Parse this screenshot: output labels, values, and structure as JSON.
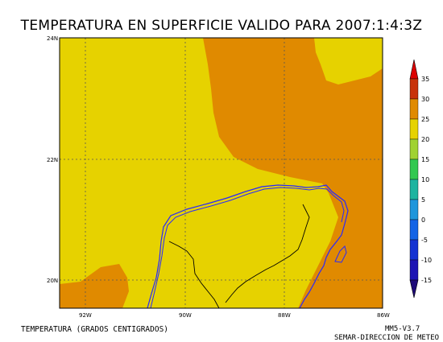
{
  "title": "TEMPERATURA EN SUPERFICIE VALIDO PARA 2007:1:4:3Z",
  "field_label": "TEMPERATURA (GRADOS CENTIGRADOS)",
  "model_label": "MM5-V3.7",
  "agency_label": "SEMAR-DIRECCION DE METEO",
  "lat_labels": [
    "24N",
    "22N",
    "20N"
  ],
  "lon_labels": [
    "92W",
    "90W",
    "88W",
    "86W"
  ],
  "legend": {
    "ticks": [
      "35",
      "30",
      "25",
      "20",
      "15",
      "10",
      "5",
      "0",
      "-5",
      "-10",
      "-15"
    ],
    "bands": [
      {
        "from": 30,
        "to": 35,
        "color": "#c8320a"
      },
      {
        "from": 25,
        "to": 30,
        "color": "#e08a00"
      },
      {
        "from": 20,
        "to": 25,
        "color": "#e6d200"
      },
      {
        "from": 15,
        "to": 20,
        "color": "#a0d232"
      },
      {
        "from": 10,
        "to": 15,
        "color": "#32c850"
      },
      {
        "from": 5,
        "to": 10,
        "color": "#1eb4a0"
      },
      {
        "from": 0,
        "to": 5,
        "color": "#1e96dc"
      },
      {
        "from": -5,
        "to": 0,
        "color": "#1464e6"
      },
      {
        "from": -10,
        "to": -5,
        "color": "#1432d2"
      },
      {
        "from": -15,
        "to": -10,
        "color": "#1e14b4"
      }
    ],
    "top_cap_color": "#dc0000",
    "bottom_cap_color": "#1e0a78"
  },
  "colors": {
    "warm_region": "#e08a00",
    "mild_region": "#e6d200",
    "coastline": "#2828ff",
    "border": "#000000",
    "grid": "#555555"
  }
}
